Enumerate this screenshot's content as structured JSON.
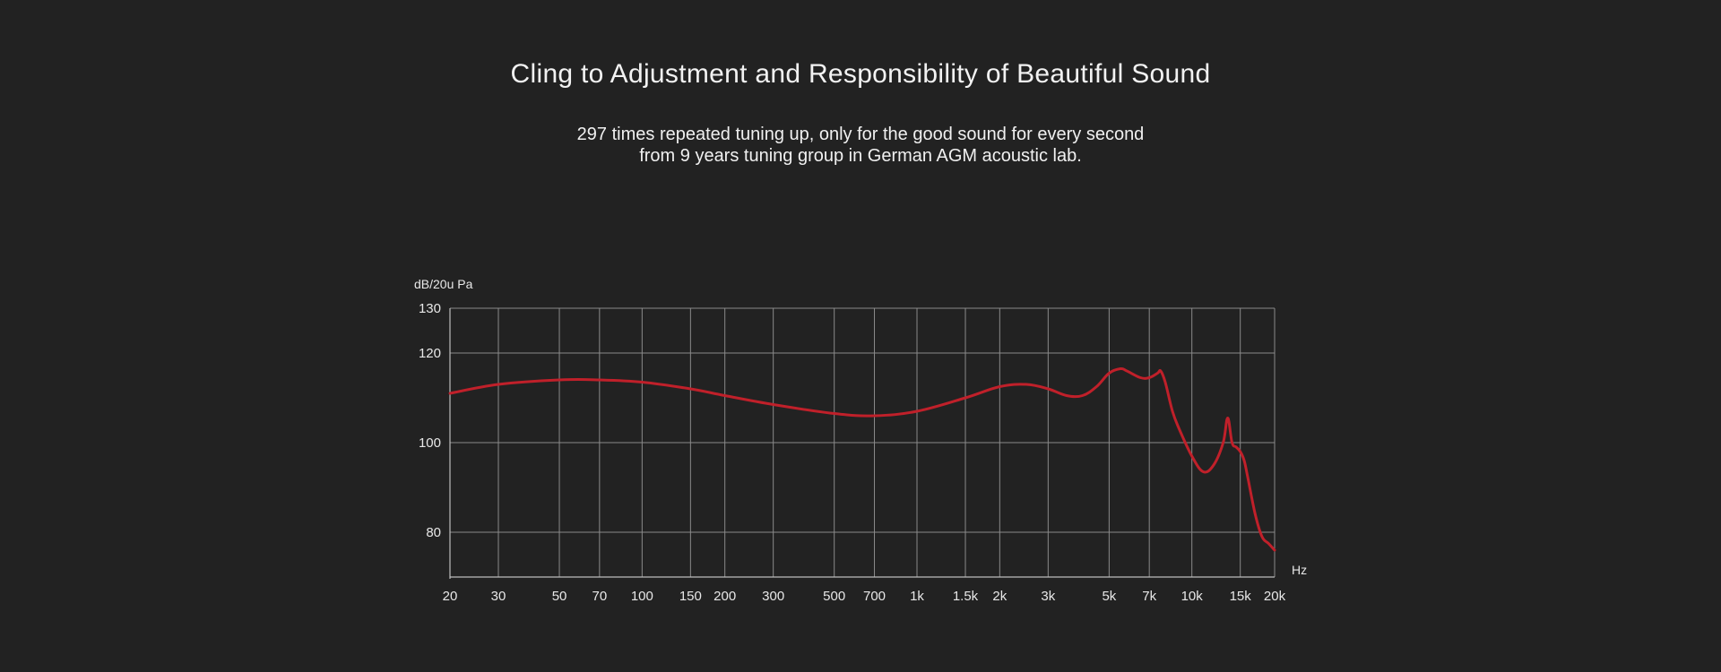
{
  "header": {
    "title": "Cling to Adjustment and Responsibility of Beautiful Sound",
    "subtitle_line1": "297 times repeated tuning up, only for the good sound for every second",
    "subtitle_line2": "from 9 years tuning group in German AGM acoustic lab."
  },
  "chart_data": {
    "type": "line",
    "xscale": "log",
    "ylabel": "dB/20u Pa",
    "xlabel": "Hz",
    "xlim": [
      20,
      20000
    ],
    "ylim": [
      70,
      130
    ],
    "grid": true,
    "y_ticks": [
      {
        "value": 130,
        "label": "130"
      },
      {
        "value": 120,
        "label": "120"
      },
      {
        "value": 100,
        "label": "100"
      },
      {
        "value": 80,
        "label": "80"
      }
    ],
    "x_ticks": [
      {
        "value": 20,
        "label": "20"
      },
      {
        "value": 30,
        "label": "30"
      },
      {
        "value": 50,
        "label": "50"
      },
      {
        "value": 70,
        "label": "70"
      },
      {
        "value": 100,
        "label": "100"
      },
      {
        "value": 150,
        "label": "150"
      },
      {
        "value": 200,
        "label": "200"
      },
      {
        "value": 300,
        "label": "300"
      },
      {
        "value": 500,
        "label": "500"
      },
      {
        "value": 700,
        "label": "700"
      },
      {
        "value": 1000,
        "label": "1k"
      },
      {
        "value": 1500,
        "label": "1.5k"
      },
      {
        "value": 2000,
        "label": "2k"
      },
      {
        "value": 3000,
        "label": "3k"
      },
      {
        "value": 5000,
        "label": "5k"
      },
      {
        "value": 7000,
        "label": "7k"
      },
      {
        "value": 10000,
        "label": "10k"
      },
      {
        "value": 15000,
        "label": "15k"
      },
      {
        "value": 20000,
        "label": "20k"
      }
    ],
    "series": [
      {
        "color": "#c0202a",
        "x": [
          20,
          30,
          50,
          70,
          100,
          150,
          200,
          300,
          500,
          700,
          1000,
          1500,
          2000,
          2500,
          3000,
          3500,
          4000,
          4500,
          5000,
          5500,
          5800,
          6500,
          7000,
          7500,
          7700,
          8000,
          8500,
          9000,
          10000,
          11000,
          12000,
          13000,
          13500,
          14000,
          14500,
          15000,
          15500,
          16000,
          17000,
          18000,
          19000,
          20000
        ],
        "y": [
          111,
          113,
          114,
          114,
          113.5,
          112,
          110.5,
          108.5,
          106.5,
          106,
          107,
          110,
          112.5,
          113,
          112,
          110.5,
          110.5,
          112.5,
          115.5,
          116.5,
          116,
          114.5,
          114.5,
          115.5,
          116,
          113.5,
          107,
          103,
          97,
          93.5,
          95,
          100,
          105.5,
          100,
          99,
          98,
          96,
          92,
          84,
          79,
          77.5,
          76
        ]
      }
    ]
  },
  "colors": {
    "background": "#222222",
    "grid": "#8a8a8a",
    "curve": "#c0202a",
    "text": "#ffffff"
  }
}
